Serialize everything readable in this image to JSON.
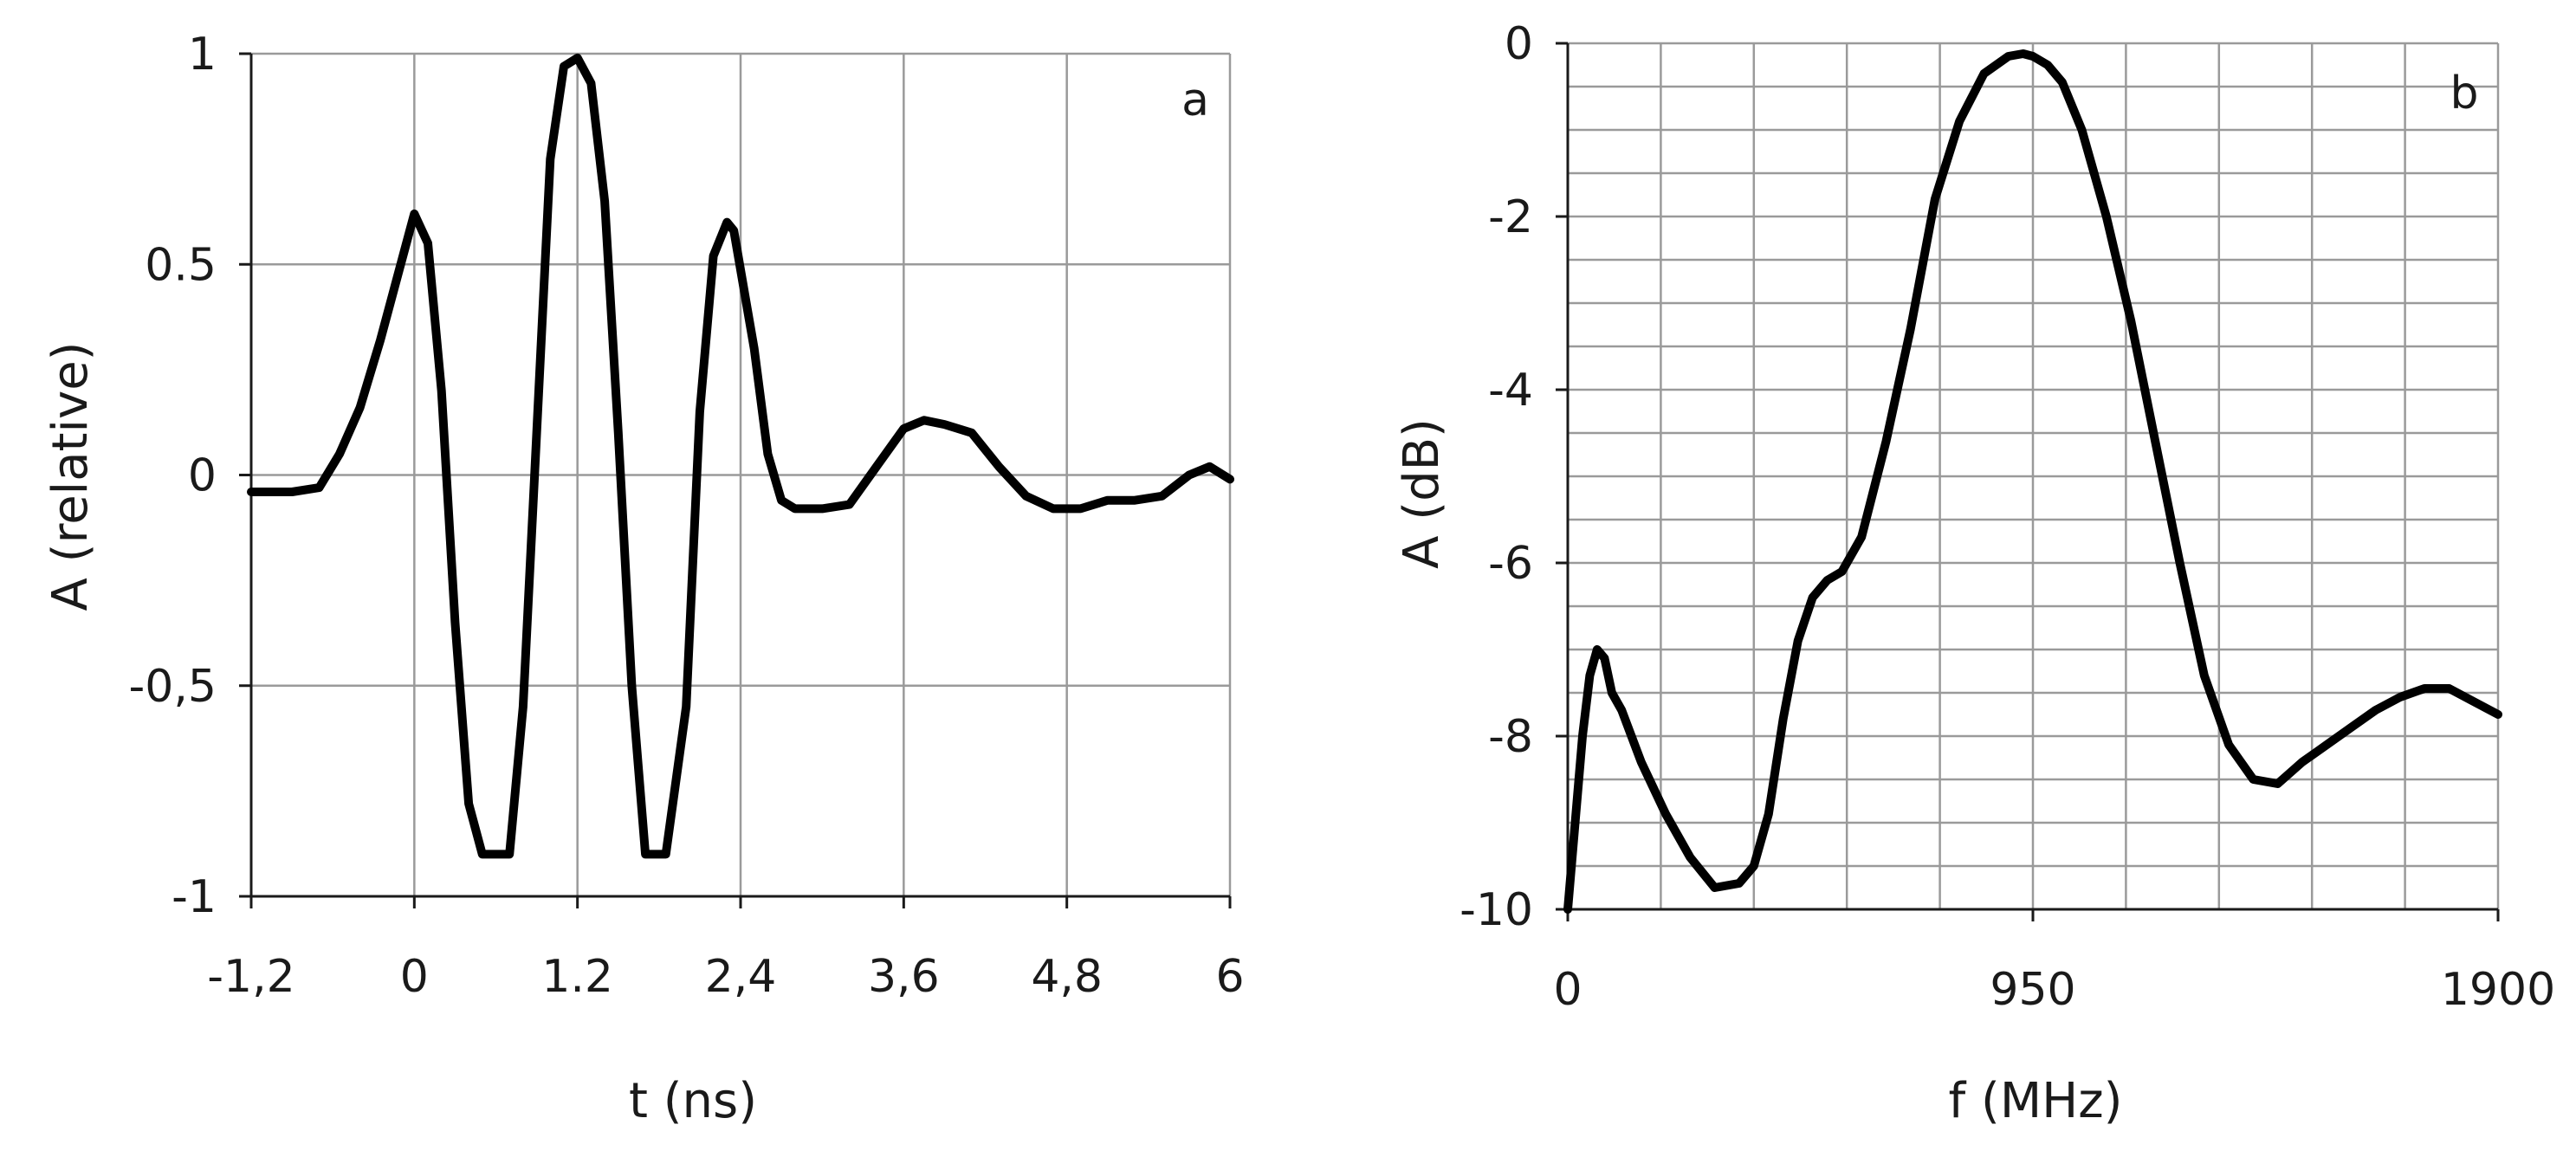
{
  "chart_data": [
    {
      "type": "line",
      "panel_label": "a",
      "xlabel": "t (ns)",
      "ylabel": "A (relative)",
      "xlim": [
        -1.2,
        6
      ],
      "ylim": [
        -1,
        1
      ],
      "x_ticks": [
        -1.2,
        0,
        1.2,
        2.4,
        3.6,
        4.8,
        6
      ],
      "x_tick_labels": [
        "-1,2",
        "0",
        "1.2",
        "2,4",
        "3,6",
        "4,8",
        "6"
      ],
      "y_ticks": [
        1,
        0.5,
        0,
        -0.5,
        -1
      ],
      "y_tick_labels": [
        "1",
        "0.5",
        "0",
        "-0,5",
        "-1"
      ],
      "grid": true,
      "series": [
        {
          "x": [
            -1.2,
            -0.9,
            -0.7,
            -0.55,
            -0.4,
            -0.25,
            -0.1,
            0,
            0.1,
            0.2,
            0.3,
            0.4,
            0.5,
            0.55,
            0.7,
            0.8,
            0.9,
            1.0,
            1.1,
            1.2,
            1.3,
            1.4,
            1.5,
            1.6,
            1.7,
            1.8,
            1.85,
            2.0,
            2.1,
            2.2,
            2.3,
            2.35,
            2.5,
            2.6,
            2.7,
            2.8,
            2.9,
            3.0,
            3.2,
            3.4,
            3.6,
            3.75,
            3.9,
            4.1,
            4.3,
            4.5,
            4.7,
            4.9,
            5.1,
            5.3,
            5.5,
            5.7,
            5.85,
            6.0
          ],
          "y": [
            -0.04,
            -0.04,
            -0.03,
            0.05,
            0.16,
            0.32,
            0.5,
            0.62,
            0.55,
            0.2,
            -0.35,
            -0.78,
            -0.9,
            -0.9,
            -0.9,
            -0.55,
            0.1,
            0.75,
            0.97,
            0.99,
            0.93,
            0.65,
            0.1,
            -0.5,
            -0.9,
            -0.9,
            -0.9,
            -0.55,
            0.15,
            0.52,
            0.6,
            0.58,
            0.3,
            0.05,
            -0.06,
            -0.08,
            -0.08,
            -0.08,
            -0.07,
            0.02,
            0.11,
            0.13,
            0.12,
            0.1,
            0.02,
            -0.05,
            -0.08,
            -0.08,
            -0.06,
            -0.06,
            -0.05,
            0.0,
            0.02,
            -0.01
          ]
        }
      ]
    },
    {
      "type": "line",
      "panel_label": "b",
      "xlabel": "f (MHz)",
      "ylabel": "A (dB)",
      "xlim": [
        0,
        1900
      ],
      "ylim": [
        -10,
        0
      ],
      "x_ticks": [
        0,
        950,
        1900
      ],
      "x_tick_labels": [
        "0",
        "950",
        "1900"
      ],
      "y_ticks": [
        0,
        -2,
        -4,
        -6,
        -8,
        -10
      ],
      "y_tick_labels": [
        "0",
        "-2",
        "-4",
        "-6",
        "-8",
        "-10"
      ],
      "grid": true,
      "series": [
        {
          "x": [
            0,
            15,
            30,
            45,
            60,
            75,
            90,
            110,
            150,
            200,
            250,
            300,
            350,
            380,
            410,
            440,
            470,
            500,
            530,
            560,
            600,
            650,
            700,
            750,
            800,
            850,
            900,
            930,
            950,
            980,
            1010,
            1050,
            1100,
            1150,
            1200,
            1250,
            1300,
            1350,
            1400,
            1450,
            1500,
            1550,
            1600,
            1650,
            1700,
            1750,
            1800,
            1850,
            1900
          ],
          "y": [
            -10,
            -9.0,
            -8.0,
            -7.3,
            -7.0,
            -7.1,
            -7.5,
            -7.7,
            -8.3,
            -8.9,
            -9.4,
            -9.75,
            -9.7,
            -9.5,
            -8.9,
            -7.8,
            -6.9,
            -6.4,
            -6.2,
            -6.1,
            -5.7,
            -4.6,
            -3.3,
            -1.8,
            -0.9,
            -0.35,
            -0.15,
            -0.12,
            -0.15,
            -0.25,
            -0.45,
            -1.0,
            -2.0,
            -3.2,
            -4.6,
            -6.0,
            -7.3,
            -8.1,
            -8.5,
            -8.55,
            -8.3,
            -8.1,
            -7.9,
            -7.7,
            -7.55,
            -7.45,
            -7.45,
            -7.6,
            -7.75
          ]
        }
      ]
    }
  ]
}
